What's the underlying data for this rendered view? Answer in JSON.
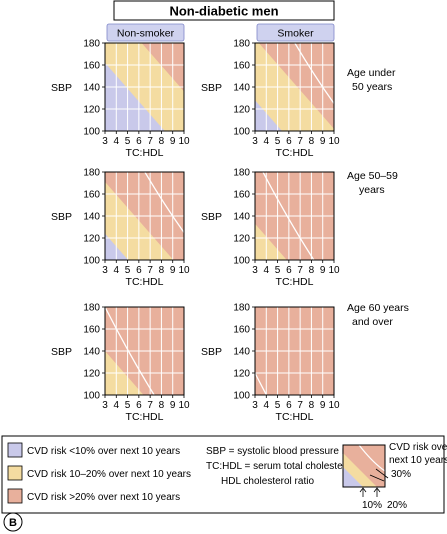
{
  "title": "Non-diabetic men",
  "colors": {
    "low": "#c9c9ea",
    "mid": "#f4dca1",
    "high": "#e8b09c",
    "grid": "#ffffff",
    "line": "#ffffff",
    "header_fill": "#cfd2ef",
    "border": "#000000"
  },
  "chart_data": [
    {
      "type": "heatmap",
      "column": "Non-smoker",
      "age_group": "Age under 50 years",
      "xlabel": "TC:HDL",
      "ylabel": "SBP",
      "xlim": [
        3,
        10
      ],
      "ylim": [
        100,
        180
      ],
      "x_ticks": [
        3,
        4,
        5,
        6,
        7,
        8,
        9,
        10
      ],
      "y_ticks": [
        100,
        120,
        140,
        160,
        180
      ],
      "boundaries": [
        {
          "label": "10%",
          "points": [
            [
              3,
              162
            ],
            [
              10,
              80
            ]
          ]
        },
        {
          "label": "20%",
          "points": [
            [
              3,
              218
            ],
            [
              10,
              136
            ]
          ]
        }
      ]
    },
    {
      "type": "heatmap",
      "column": "Smoker",
      "age_group": "Age under 50 years",
      "xlabel": "TC:HDL",
      "ylabel": "SBP",
      "xlim": [
        3,
        10
      ],
      "ylim": [
        100,
        180
      ],
      "x_ticks": [
        3,
        4,
        5,
        6,
        7,
        8,
        9,
        10
      ],
      "y_ticks": [
        100,
        120,
        140,
        160,
        180
      ],
      "boundaries": [
        {
          "label": "10%",
          "points": [
            [
              3,
              128
            ],
            [
              10,
              46
            ]
          ]
        },
        {
          "label": "20%",
          "points": [
            [
              3,
              184
            ],
            [
              10,
              102
            ]
          ]
        },
        {
          "label": "30%",
          "points": [
            [
              3,
              246
            ],
            [
              10,
              125
            ]
          ]
        }
      ]
    },
    {
      "type": "heatmap",
      "column": "Non-smoker",
      "age_group": "Age 50–59 years",
      "xlabel": "TC:HDL",
      "ylabel": "SBP",
      "xlim": [
        3,
        10
      ],
      "ylim": [
        100,
        180
      ],
      "x_ticks": [
        3,
        4,
        5,
        6,
        7,
        8,
        9,
        10
      ],
      "y_ticks": [
        100,
        120,
        140,
        160,
        180
      ],
      "boundaries": [
        {
          "label": "10%",
          "points": [
            [
              3,
              124
            ],
            [
              10,
              42
            ]
          ]
        },
        {
          "label": "20%",
          "points": [
            [
              3,
              171
            ],
            [
              10,
              89
            ]
          ]
        },
        {
          "label": "30%",
          "points": [
            [
              3,
              246
            ],
            [
              10,
              125
            ]
          ]
        }
      ]
    },
    {
      "type": "heatmap",
      "column": "Smoker",
      "age_group": "Age 50–59 years",
      "xlabel": "TC:HDL",
      "ylabel": "SBP",
      "xlim": [
        3,
        10
      ],
      "ylim": [
        100,
        180
      ],
      "x_ticks": [
        3,
        4,
        5,
        6,
        7,
        8,
        9,
        10
      ],
      "y_ticks": [
        100,
        120,
        140,
        160,
        180
      ],
      "boundaries": [
        {
          "label": "10%",
          "points": [
            [
              3,
              82
            ],
            [
              10,
              0
            ]
          ]
        },
        {
          "label": "20%",
          "points": [
            [
              3,
              133
            ],
            [
              10,
              51
            ]
          ]
        },
        {
          "label": "30%",
          "points": [
            [
              3,
              194
            ],
            [
              10,
              73
            ]
          ]
        }
      ]
    },
    {
      "type": "heatmap",
      "column": "Non-smoker",
      "age_group": "Age 60 years and over",
      "xlabel": "TC:HDL",
      "ylabel": "SBP",
      "xlim": [
        3,
        10
      ],
      "ylim": [
        100,
        180
      ],
      "x_ticks": [
        3,
        4,
        5,
        6,
        7,
        8,
        9,
        10
      ],
      "y_ticks": [
        100,
        120,
        140,
        160,
        180
      ],
      "boundaries": [
        {
          "label": "10%",
          "points": [
            [
              3,
              80
            ],
            [
              10,
              -2
            ]
          ]
        },
        {
          "label": "20%",
          "points": [
            [
              3,
              140
            ],
            [
              10,
              58
            ]
          ]
        },
        {
          "label": "30%",
          "points": [
            [
              3,
              180
            ],
            [
              10,
              59
            ]
          ]
        }
      ]
    },
    {
      "type": "heatmap",
      "column": "Smoker",
      "age_group": "Age 60 years and over",
      "xlabel": "TC:HDL",
      "ylabel": "SBP",
      "xlim": [
        3,
        10
      ],
      "ylim": [
        100,
        180
      ],
      "x_ticks": [
        3,
        4,
        5,
        6,
        7,
        8,
        9,
        10
      ],
      "y_ticks": [
        100,
        120,
        140,
        160,
        180
      ],
      "boundaries": [
        {
          "label": "10%",
          "points": [
            [
              3,
              40
            ],
            [
              10,
              -42
            ]
          ]
        },
        {
          "label": "20%",
          "points": [
            [
              3,
              90
            ],
            [
              10,
              8
            ]
          ]
        },
        {
          "label": "30%",
          "points": [
            [
              3,
              120
            ],
            [
              10,
              -1
            ]
          ]
        }
      ]
    }
  ],
  "column_headers": [
    "Non-smoker",
    "Smoker"
  ],
  "age_labels": [
    [
      "Age under",
      "50 years"
    ],
    [
      "Age 50–59",
      "years"
    ],
    [
      "Age 60 years",
      "and over"
    ]
  ],
  "axes": {
    "xlabel": "TC:HDL",
    "ylabel": "SBP",
    "x_ticks": [
      "3",
      "4",
      "5",
      "6",
      "7",
      "8",
      "9",
      "10"
    ],
    "y_ticks": [
      "100",
      "120",
      "140",
      "160",
      "180"
    ]
  },
  "legend": {
    "items": [
      {
        "key": "low",
        "label": "CVD risk <10% over next 10 years"
      },
      {
        "key": "mid",
        "label": "CVD risk 10–20% over next 10 years"
      },
      {
        "key": "high",
        "label": "CVD risk >20% over next 10 years"
      }
    ],
    "definitions": [
      "SBP = systolic blood pressure mmHg",
      "TC:HDL = serum total cholesterol to",
      "HDL  cholesterol ratio"
    ],
    "key_text": [
      "CVD risk over",
      "next 10 years",
      "30%"
    ],
    "key_markers": [
      "10%",
      "20%"
    ]
  },
  "panel_label": "B"
}
